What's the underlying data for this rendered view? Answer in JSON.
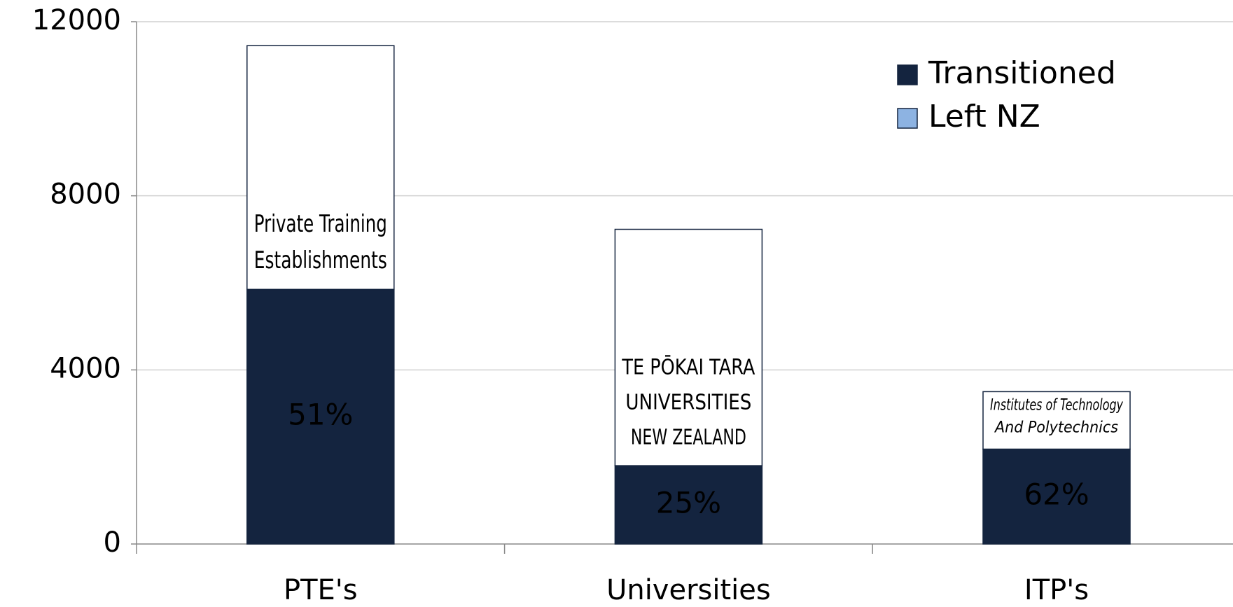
{
  "chart_data": {
    "type": "stacked_bar",
    "categories": [
      "PTE's",
      "Universities",
      "ITP's"
    ],
    "series": [
      {
        "name": "Transitioned",
        "color": "#14243f",
        "values": [
          5850,
          1800,
          2180
        ]
      },
      {
        "name": "Left NZ",
        "color": "#8db3e2",
        "values": [
          5600,
          5430,
          1320
        ]
      }
    ],
    "percent_labels": [
      "51%",
      "25%",
      "62%"
    ],
    "segment_texts": [
      [
        "Private Training",
        "Establishments"
      ],
      [
        "TE PŌKAI TARA",
        "UNIVERSITIES",
        "NEW ZEALAND"
      ],
      [
        "Institutes of Technology",
        "And Polytechnics"
      ]
    ],
    "ylim": [
      0,
      12000
    ],
    "yticks": [
      0,
      4000,
      8000,
      12000
    ],
    "grid": true,
    "legend": "top-right"
  }
}
